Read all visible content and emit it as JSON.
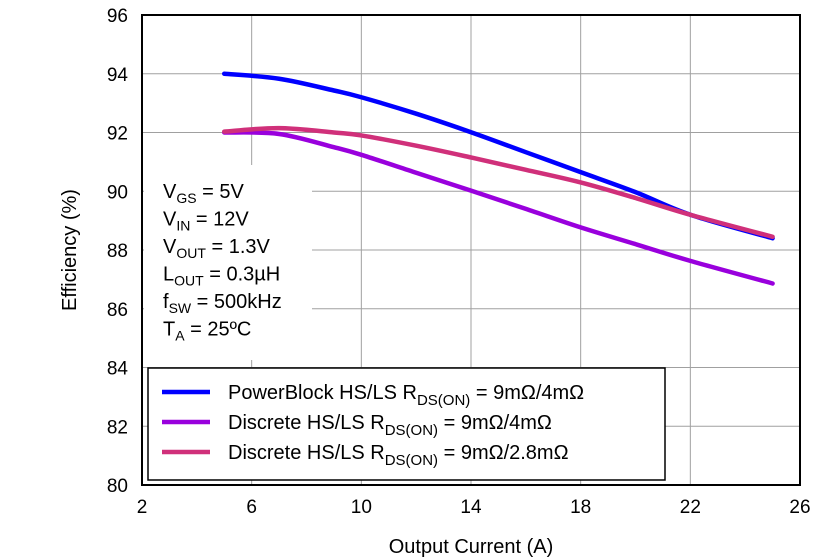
{
  "chart_data": {
    "type": "line",
    "xlabel": "Output Current (A)",
    "ylabel": "Efficiency (%)",
    "xlim": [
      2,
      26
    ],
    "ylim": [
      80,
      96
    ],
    "xticks": [
      2,
      6,
      10,
      14,
      18,
      22,
      26
    ],
    "yticks": [
      80,
      82,
      84,
      86,
      88,
      90,
      92,
      94,
      96
    ],
    "grid": true,
    "legend_position": "bottom-left",
    "conditions": [
      {
        "main": "V",
        "sub": "GS",
        "rest": " = 5V"
      },
      {
        "main": "V",
        "sub": "IN",
        "rest": " = 12V"
      },
      {
        "main": "V",
        "sub": "OUT",
        "rest": " = 1.3V"
      },
      {
        "main": "L",
        "sub": "OUT",
        "rest": " = 0.3µH"
      },
      {
        "main": "f",
        "sub": "SW",
        "rest": " = 500kHz"
      },
      {
        "main": "T",
        "sub": "A",
        "rest": " = 25ºC"
      }
    ],
    "series": [
      {
        "name": "PowerBlock  HS/LS R_DS(ON) = 9mΩ/4mΩ",
        "legend_pre": "PowerBlock  HS/LS R",
        "legend_sub": "DS(ON)",
        "legend_post": " = 9mΩ/4mΩ",
        "color": "#0000ff",
        "x": [
          5,
          7,
          9,
          10,
          12,
          14,
          16,
          18,
          20,
          22,
          25
        ],
        "y": [
          94.0,
          93.83,
          93.43,
          93.2,
          92.64,
          92.01,
          91.33,
          90.65,
          89.97,
          89.2,
          88.4
        ]
      },
      {
        "name": "Discrete  HS/LS R_DS(ON) = 9mΩ/4mΩ",
        "legend_pre": "Discrete  HS/LS R",
        "legend_sub": "DS(ON)",
        "legend_post": " = 9mΩ/4mΩ",
        "color": "#9900dd",
        "x": [
          5,
          7,
          9,
          10,
          12,
          14,
          16,
          18,
          20,
          22,
          25
        ],
        "y": [
          92.0,
          91.95,
          91.5,
          91.24,
          90.63,
          90.02,
          89.4,
          88.77,
          88.2,
          87.63,
          86.86
        ]
      },
      {
        "name": "Discrete  HS/LS R_DS(ON) = 9mΩ/2.8mΩ",
        "legend_pre": "Discrete  HS/LS R",
        "legend_sub": "DS(ON)",
        "legend_post": " = 9mΩ/2.8mΩ",
        "color": "#d0307a",
        "x": [
          5,
          7,
          9,
          10,
          12,
          14,
          16,
          18,
          20,
          22,
          25
        ],
        "y": [
          92.03,
          92.15,
          92.0,
          91.9,
          91.55,
          91.15,
          90.73,
          90.3,
          89.77,
          89.2,
          88.45
        ]
      }
    ]
  }
}
